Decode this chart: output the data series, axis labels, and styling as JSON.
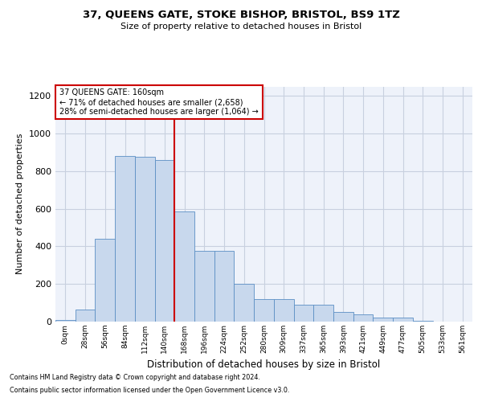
{
  "title1": "37, QUEENS GATE, STOKE BISHOP, BRISTOL, BS9 1TZ",
  "title2": "Size of property relative to detached houses in Bristol",
  "xlabel": "Distribution of detached houses by size in Bristol",
  "ylabel": "Number of detached properties",
  "categories": [
    "0sqm",
    "28sqm",
    "56sqm",
    "84sqm",
    "112sqm",
    "140sqm",
    "168sqm",
    "196sqm",
    "224sqm",
    "252sqm",
    "280sqm",
    "309sqm",
    "337sqm",
    "365sqm",
    "393sqm",
    "421sqm",
    "449sqm",
    "477sqm",
    "505sqm",
    "533sqm",
    "561sqm"
  ],
  "values": [
    10,
    65,
    440,
    880,
    875,
    860,
    585,
    375,
    375,
    200,
    120,
    120,
    90,
    90,
    50,
    40,
    20,
    20,
    5,
    2,
    1
  ],
  "bar_color": "#c8d8ed",
  "bar_edge_color": "#5b8ec4",
  "annotation_box_text": "37 QUEENS GATE: 160sqm\n← 71% of detached houses are smaller (2,658)\n28% of semi-detached houses are larger (1,064) →",
  "vline_color": "#cc0000",
  "annotation_box_color": "#ffffff",
  "annotation_box_edge_color": "#cc0000",
  "ylim": [
    0,
    1250
  ],
  "yticks": [
    0,
    200,
    400,
    600,
    800,
    1000,
    1200
  ],
  "grid_color": "#c8d0df",
  "footer1": "Contains HM Land Registry data © Crown copyright and database right 2024.",
  "footer2": "Contains public sector information licensed under the Open Government Licence v3.0.",
  "bg_color": "#eef2fa"
}
